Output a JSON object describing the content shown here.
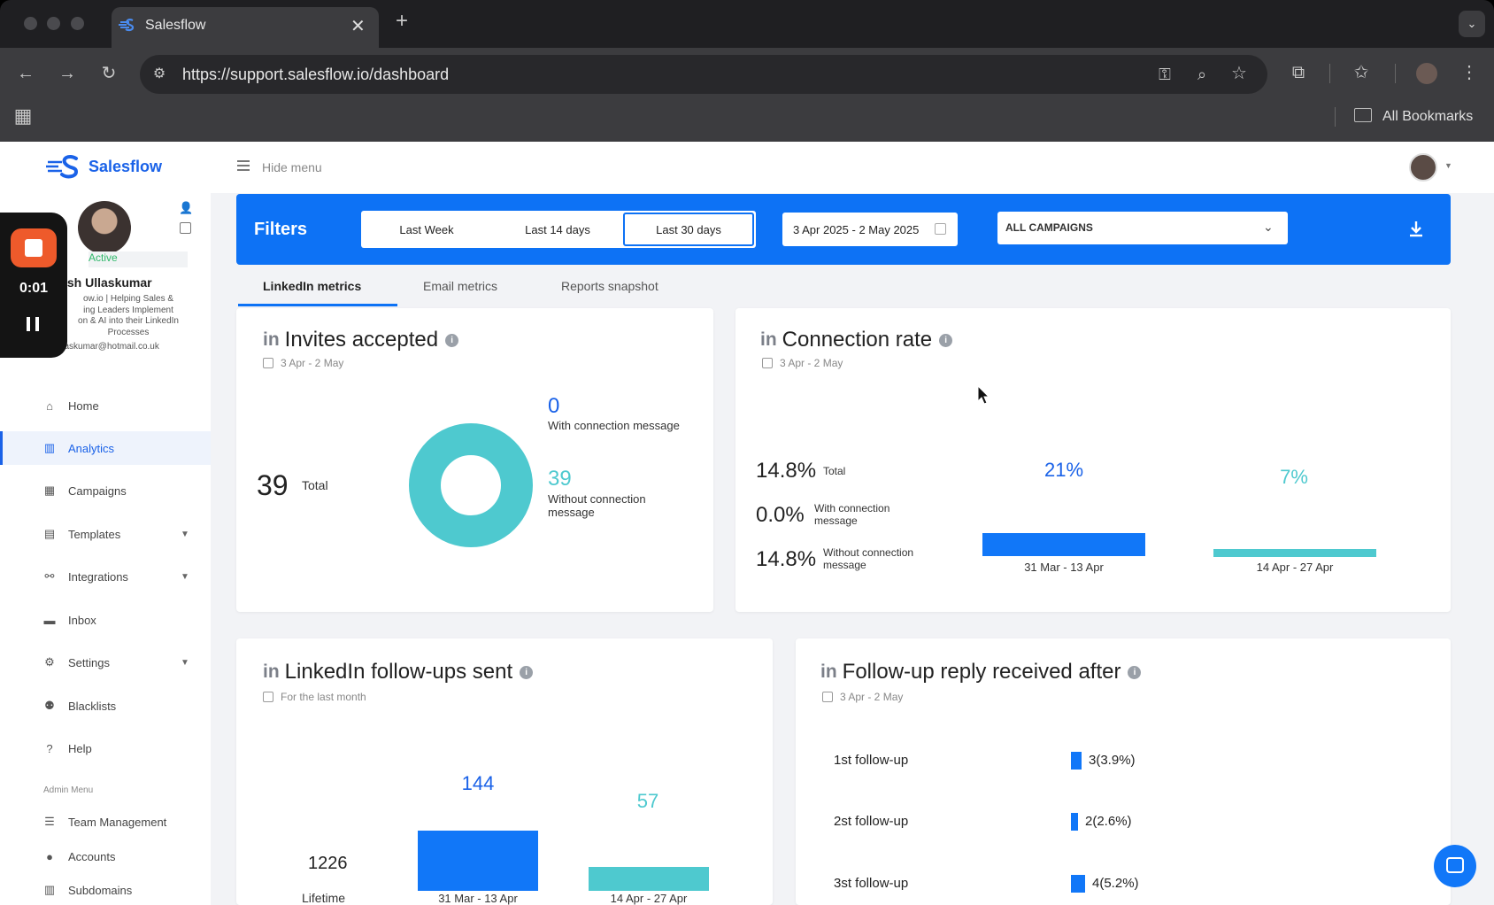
{
  "browser": {
    "tab_title": "Salesflow",
    "url": "https://support.salesflow.io/dashboard",
    "bookmarks_label": "All Bookmarks"
  },
  "app": {
    "logo_text": "Salesflow",
    "hide_menu": "Hide menu"
  },
  "recorder": {
    "time": "0:01"
  },
  "profile": {
    "status": "Active",
    "name": "ish Ullaskumar",
    "bio_lines": [
      "ow.io | Helping Sales &",
      "ing Leaders Implement",
      "on & AI into their LinkedIn",
      "Processes"
    ],
    "email": "llaskumar@hotmail.co.uk"
  },
  "sidebar": {
    "items": [
      {
        "label": "Home",
        "icon": "home-icon"
      },
      {
        "label": "Analytics",
        "icon": "bar-chart-icon"
      },
      {
        "label": "Campaigns",
        "icon": "grid-icon"
      },
      {
        "label": "Templates",
        "icon": "chat-icon"
      },
      {
        "label": "Integrations",
        "icon": "flow-icon"
      },
      {
        "label": "Inbox",
        "icon": "inbox-icon"
      },
      {
        "label": "Settings",
        "icon": "gear-icon"
      },
      {
        "label": "Blacklists",
        "icon": "users-block-icon"
      },
      {
        "label": "Help",
        "icon": "help-icon"
      }
    ],
    "admin_heading": "Admin Menu",
    "admin_items": [
      {
        "label": "Team Management",
        "icon": "sliders-icon"
      },
      {
        "label": "Accounts",
        "icon": "user-icon"
      },
      {
        "label": "Subdomains",
        "icon": "building-icon"
      }
    ]
  },
  "filters": {
    "title": "Filters",
    "segments": [
      "Last Week",
      "Last 14 days",
      "Last 30 days"
    ],
    "selected": "Last 30 days",
    "date_range": "3 Apr 2025 - 2 May 2025",
    "campaign": "ALL CAMPAIGNS"
  },
  "tabs": [
    "LinkedIn metrics",
    "Email metrics",
    "Reports snapshot"
  ],
  "cards": {
    "invites": {
      "title": "Invites accepted",
      "date": "3 Apr - 2 May",
      "total_value": "39",
      "total_label": "Total",
      "with_value": "0",
      "with_label": "With connection message",
      "without_value": "39",
      "without_label": "Without connection message"
    },
    "connection": {
      "title": "Connection rate",
      "date": "3 Apr - 2 May",
      "rows": [
        {
          "value": "14.8%",
          "label": "Total"
        },
        {
          "value": "0.0%",
          "label": "With connection message"
        },
        {
          "value": "14.8%",
          "label": "Without connection message"
        }
      ],
      "bars": [
        {
          "value": "21%",
          "label": "31 Mar - 13 Apr"
        },
        {
          "value": "7%",
          "label": "14 Apr - 27 Apr"
        }
      ]
    },
    "followups": {
      "title": "LinkedIn follow-ups sent",
      "date": "For the last month",
      "lifetime_value": "1226",
      "lifetime_label": "Lifetime",
      "bars": [
        {
          "value": "144",
          "label": "31 Mar - 13 Apr"
        },
        {
          "value": "57",
          "label": "14 Apr - 27 Apr"
        }
      ]
    },
    "reply": {
      "title": "Follow-up reply received after",
      "date": "3 Apr - 2 May",
      "rows": [
        {
          "label": "1st follow-up",
          "value": "3(3.9%)"
        },
        {
          "label": "2st follow-up",
          "value": "2(2.6%)"
        },
        {
          "label": "3st follow-up",
          "value": "4(5.2%)"
        }
      ]
    }
  },
  "colors": {
    "primary": "#0d72f5",
    "bar_blue": "#1177f8",
    "bar_teal": "#4ec9cf"
  }
}
